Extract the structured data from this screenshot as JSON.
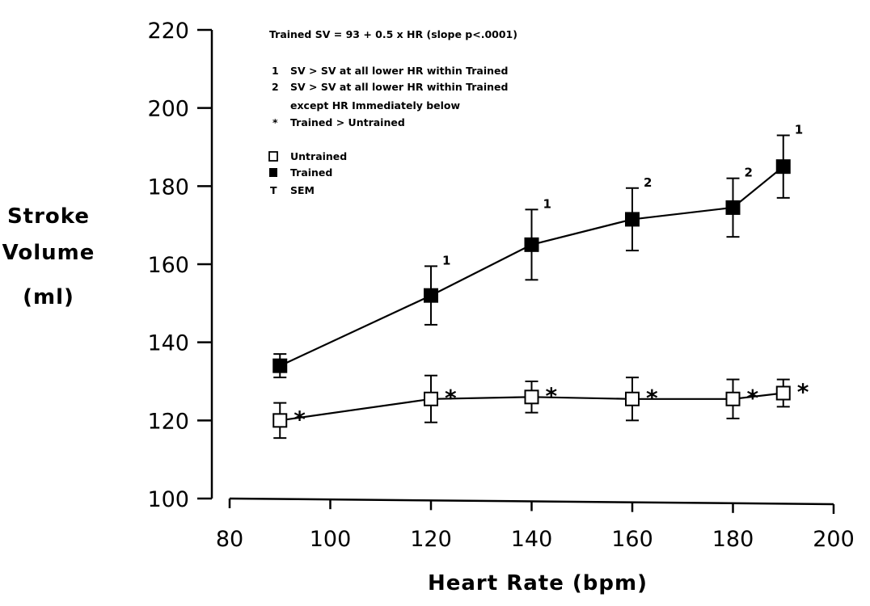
{
  "chart_data": {
    "type": "line",
    "xlabel": "Heart Rate (bpm)",
    "ylabel_lines": [
      "Stroke",
      "Volume",
      "(ml)"
    ],
    "xlim": [
      80,
      200
    ],
    "ylim": [
      100,
      220
    ],
    "xticks": [
      80,
      100,
      120,
      140,
      160,
      180,
      200
    ],
    "yticks": [
      100,
      120,
      140,
      160,
      180,
      200,
      220
    ],
    "grid": false,
    "x": [
      90,
      120,
      140,
      160,
      180,
      190
    ],
    "series": [
      {
        "name": "Trained",
        "marker": "filled-square",
        "values": [
          134,
          152,
          165,
          171.5,
          174.5,
          185
        ],
        "sem": [
          3,
          7.5,
          9,
          8,
          7.5,
          8
        ],
        "labels": [
          "",
          "1",
          "1",
          "2",
          "2",
          "1"
        ]
      },
      {
        "name": "Untrained",
        "marker": "open-square",
        "values": [
          120,
          125.5,
          126,
          125.5,
          125.5,
          127
        ],
        "sem": [
          4.5,
          6,
          4,
          5.5,
          5,
          3.5
        ],
        "labels": [
          "*",
          "*",
          "*",
          "*",
          "*",
          "*"
        ]
      }
    ],
    "annotation": {
      "equation": "Trained SV = 93 + 0.5 x HR (slope p<.0001)",
      "notes": [
        {
          "key": "1",
          "lines": [
            "SV > SV at all lower HR within Trained"
          ]
        },
        {
          "key": "2",
          "lines": [
            "SV > SV at all lower HR within Trained",
            "except HR Immediately below"
          ]
        },
        {
          "key": "*",
          "lines": [
            "Trained > Untrained"
          ]
        }
      ],
      "legend": [
        {
          "symbol": "open-square",
          "label": "Untrained"
        },
        {
          "symbol": "filled-square",
          "label": "Trained"
        },
        {
          "symbol": "T",
          "label": "SEM"
        }
      ]
    }
  }
}
